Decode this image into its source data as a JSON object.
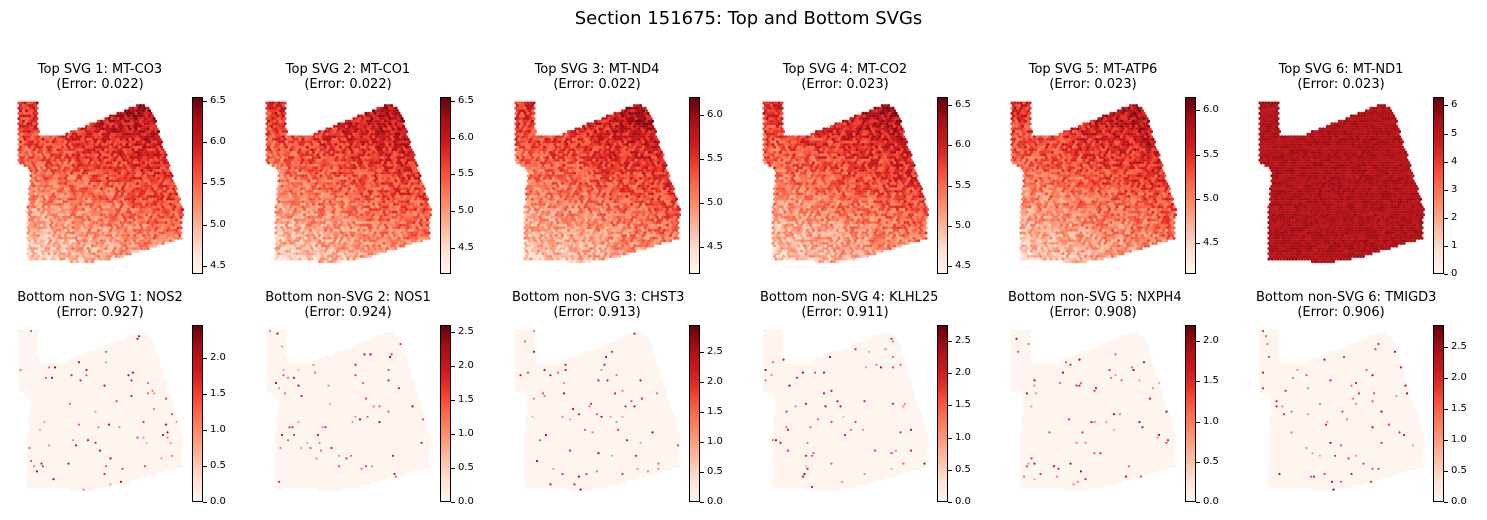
{
  "title": "Section 151675: Top and Bottom SVGs",
  "colormap": [
    "#fff5f0",
    "#fee0d2",
    "#fcbba1",
    "#fc9272",
    "#fb6a4a",
    "#ef3b2c",
    "#cb181d",
    "#a50f15",
    "#67000d"
  ],
  "chart_data": [
    {
      "type": "scatter",
      "panel": "Top SVG 1: MT-CO3",
      "title_line1": "Top SVG 1: MT-CO3",
      "title_line2": "(Error: 0.022)",
      "error": 0.022,
      "kind": "top",
      "colorbar": {
        "min": 4.4,
        "max": 6.55,
        "ticks": [
          4.5,
          5.0,
          5.5,
          6.0,
          6.5
        ],
        "tick_labels": [
          "4.5",
          "5.0",
          "5.5",
          "6.0",
          "6.5"
        ]
      }
    },
    {
      "type": "scatter",
      "panel": "Top SVG 2: MT-CO1",
      "title_line1": "Top SVG 2: MT-CO1",
      "title_line2": "(Error: 0.022)",
      "error": 0.022,
      "kind": "top",
      "colorbar": {
        "min": 4.15,
        "max": 6.55,
        "ticks": [
          4.5,
          5.0,
          5.5,
          6.0,
          6.5
        ],
        "tick_labels": [
          "4.5",
          "5.0",
          "5.5",
          "6.0",
          "6.5"
        ]
      }
    },
    {
      "type": "scatter",
      "panel": "Top SVG 3: MT-ND4",
      "title_line1": "Top SVG 3: MT-ND4",
      "title_line2": "(Error: 0.022)",
      "error": 0.022,
      "kind": "top",
      "colorbar": {
        "min": 4.2,
        "max": 6.2,
        "ticks": [
          4.5,
          5.0,
          5.5,
          6.0
        ],
        "tick_labels": [
          "4.5",
          "5.0",
          "5.5",
          "6.0"
        ]
      }
    },
    {
      "type": "scatter",
      "panel": "Top SVG 4: MT-CO2",
      "title_line1": "Top SVG 4: MT-CO2",
      "title_line2": "(Error: 0.023)",
      "error": 0.023,
      "kind": "top",
      "colorbar": {
        "min": 4.4,
        "max": 6.6,
        "ticks": [
          4.5,
          5.0,
          5.5,
          6.0,
          6.5
        ],
        "tick_labels": [
          "4.5",
          "5.0",
          "5.5",
          "6.0",
          "6.5"
        ]
      }
    },
    {
      "type": "scatter",
      "panel": "Top SVG 5: MT-ATP6",
      "title_line1": "Top SVG 5: MT-ATP6",
      "title_line2": "(Error: 0.023)",
      "error": 0.023,
      "kind": "top",
      "colorbar": {
        "min": 4.15,
        "max": 6.15,
        "ticks": [
          4.5,
          5.0,
          5.5,
          6.0
        ],
        "tick_labels": [
          "4.5",
          "5.0",
          "5.5",
          "6.0"
        ]
      }
    },
    {
      "type": "scatter",
      "panel": "Top SVG 6: MT-ND1",
      "title_line1": "Top SVG 6: MT-ND1",
      "title_line2": "(Error: 0.023)",
      "error": 0.023,
      "kind": "uniform",
      "colorbar": {
        "min": 0,
        "max": 6.3,
        "ticks": [
          0,
          1,
          2,
          3,
          4,
          5,
          6
        ],
        "tick_labels": [
          "0",
          "1",
          "2",
          "3",
          "4",
          "5",
          "6"
        ]
      }
    },
    {
      "type": "scatter",
      "panel": "Bottom non-SVG 1: NOS2",
      "title_line1": "Bottom non-SVG 1: NOS2",
      "title_line2": "(Error: 0.927)",
      "error": 0.927,
      "kind": "bottom",
      "colorbar": {
        "min": 0,
        "max": 2.45,
        "ticks": [
          0.0,
          0.5,
          1.0,
          1.5,
          2.0
        ],
        "tick_labels": [
          "0.0",
          "0.5",
          "1.0",
          "1.5",
          "2.0"
        ]
      }
    },
    {
      "type": "scatter",
      "panel": "Bottom non-SVG 2: NOS1",
      "title_line1": "Bottom non-SVG 2: NOS1",
      "title_line2": "(Error: 0.924)",
      "error": 0.924,
      "kind": "bottom",
      "colorbar": {
        "min": 0,
        "max": 2.6,
        "ticks": [
          0.0,
          0.5,
          1.0,
          1.5,
          2.0,
          2.5
        ],
        "tick_labels": [
          "0.0",
          "0.5",
          "1.0",
          "1.5",
          "2.0",
          "2.5"
        ]
      }
    },
    {
      "type": "scatter",
      "panel": "Bottom non-SVG 3: CHST3",
      "title_line1": "Bottom non-SVG 3: CHST3",
      "title_line2": "(Error: 0.913)",
      "error": 0.913,
      "kind": "bottom",
      "colorbar": {
        "min": 0,
        "max": 2.95,
        "ticks": [
          0.0,
          0.5,
          1.0,
          1.5,
          2.0,
          2.5
        ],
        "tick_labels": [
          "0.0",
          "0.5",
          "1.0",
          "1.5",
          "2.0",
          "2.5"
        ]
      }
    },
    {
      "type": "scatter",
      "panel": "Bottom non-SVG 4: KLHL25",
      "title_line1": "Bottom non-SVG 4: KLHL25",
      "title_line2": "(Error: 0.911)",
      "error": 0.911,
      "kind": "bottom",
      "colorbar": {
        "min": 0,
        "max": 2.75,
        "ticks": [
          0.0,
          0.5,
          1.0,
          1.5,
          2.0,
          2.5
        ],
        "tick_labels": [
          "0.0",
          "0.5",
          "1.0",
          "1.5",
          "2.0",
          "2.5"
        ]
      }
    },
    {
      "type": "scatter",
      "panel": "Bottom non-SVG 5: NXPH4",
      "title_line1": "Bottom non-SVG 5: NXPH4",
      "title_line2": "(Error: 0.908)",
      "error": 0.908,
      "kind": "bottom",
      "colorbar": {
        "min": 0,
        "max": 2.2,
        "ticks": [
          0.0,
          0.5,
          1.0,
          1.5,
          2.0
        ],
        "tick_labels": [
          "0.0",
          "0.5",
          "1.0",
          "1.5",
          "2.0"
        ]
      }
    },
    {
      "type": "scatter",
      "panel": "Bottom non-SVG 6: TMIGD3",
      "title_line1": "Bottom non-SVG 6: TMIGD3",
      "title_line2": "(Error: 0.906)",
      "error": 0.906,
      "kind": "bottom",
      "colorbar": {
        "min": 0,
        "max": 2.85,
        "ticks": [
          0.0,
          0.5,
          1.0,
          1.5,
          2.0,
          2.5
        ],
        "tick_labels": [
          "0.0",
          "0.5",
          "1.0",
          "1.5",
          "2.0",
          "2.5"
        ]
      }
    }
  ]
}
